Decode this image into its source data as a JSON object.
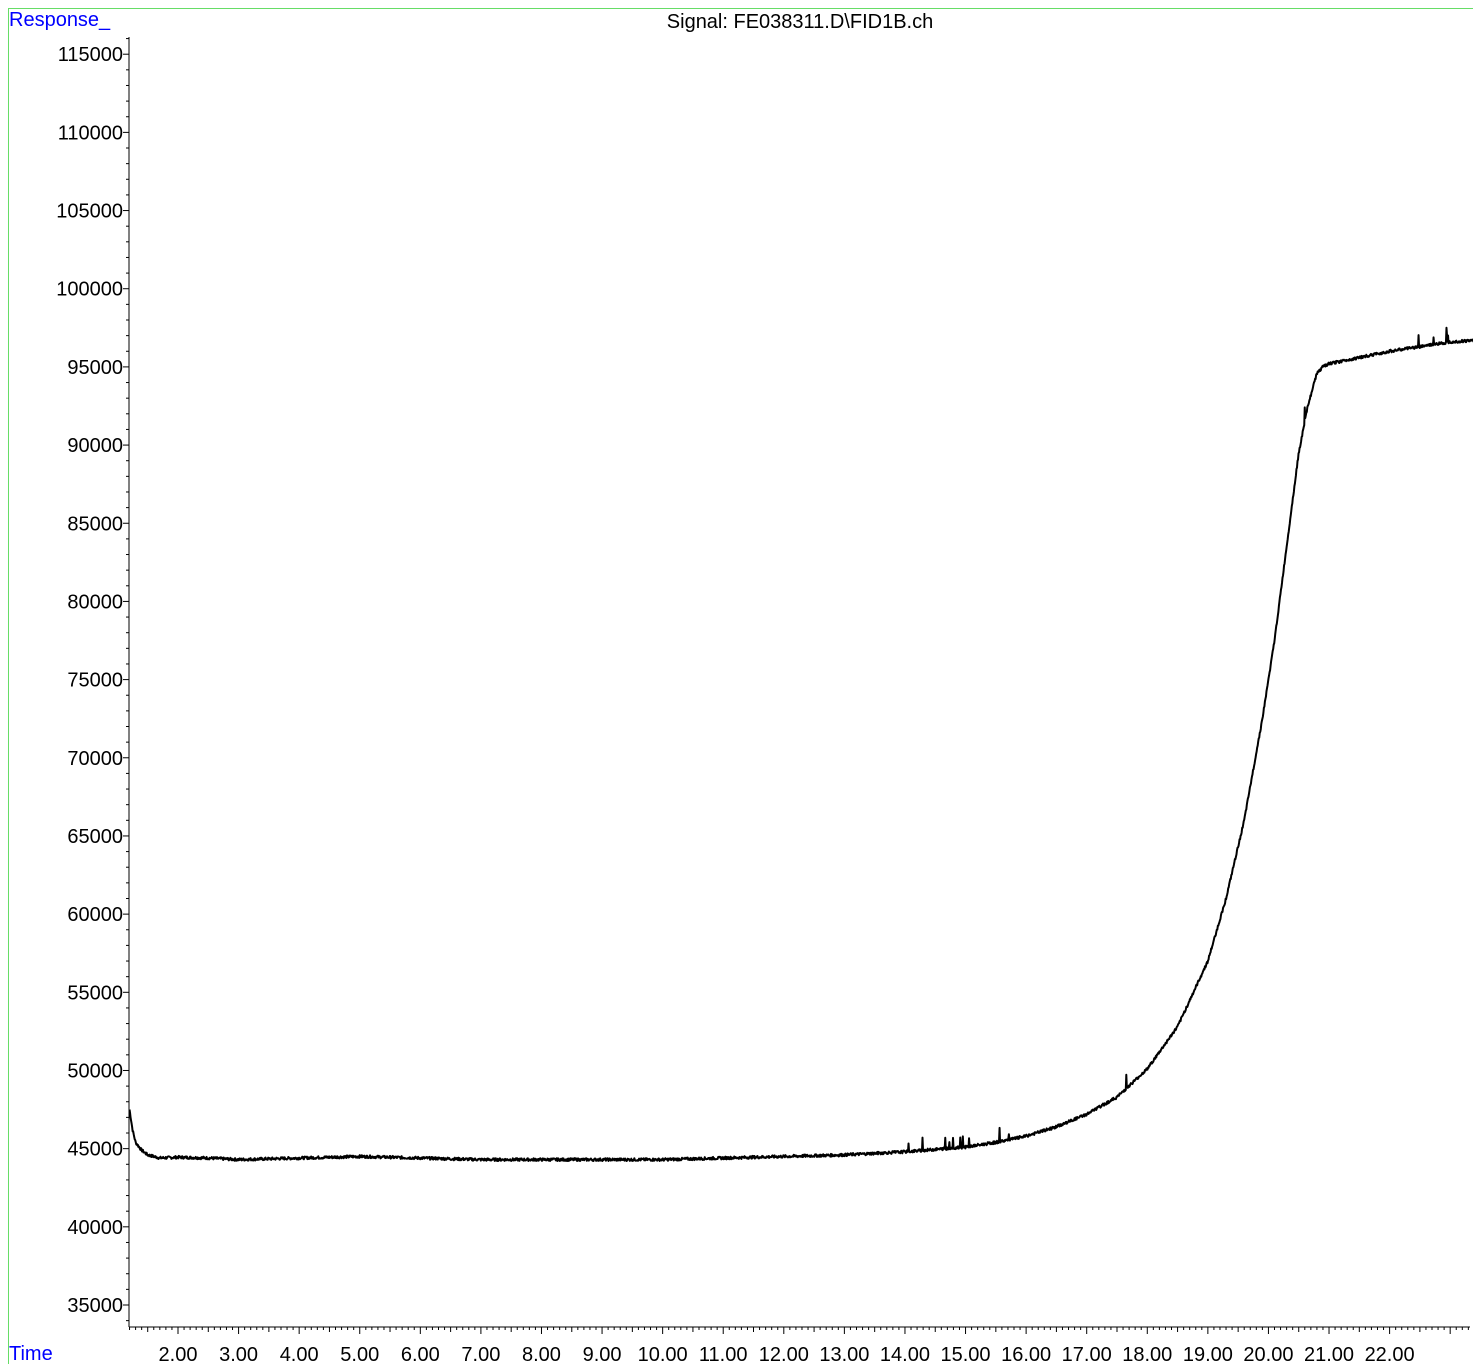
{
  "chart_data": {
    "type": "line",
    "title": "Signal: FE038311.D\\FID1B.ch",
    "ylabel": "Response_",
    "xlabel": "Time",
    "xlim": [
      1.2,
      23.4
    ],
    "ylim": [
      33500,
      117000
    ],
    "xticks": [
      "2.00",
      "3.00",
      "4.00",
      "5.00",
      "6.00",
      "7.00",
      "8.00",
      "9.00",
      "10.00",
      "11.00",
      "12.00",
      "13.00",
      "14.00",
      "15.00",
      "16.00",
      "17.00",
      "18.00",
      "19.00",
      "20.00",
      "21.00",
      "22.00"
    ],
    "yticks": [
      "35000",
      "40000",
      "45000",
      "50000",
      "55000",
      "60000",
      "65000",
      "70000",
      "75000",
      "80000",
      "85000",
      "90000",
      "95000",
      "100000",
      "105000",
      "110000",
      "115000"
    ],
    "grid": false,
    "series": [
      {
        "color": "#000000",
        "x": [
          1.2,
          1.25,
          1.3,
          1.4,
          1.5,
          1.6,
          1.7,
          2.0,
          2.5,
          3.0,
          4.0,
          5.0,
          6.0,
          7.0,
          8.0,
          9.0,
          10.0,
          11.0,
          12.0,
          13.0,
          14.0,
          15.0,
          15.5,
          16.0,
          16.5,
          17.0,
          17.5,
          18.0,
          18.5,
          19.0,
          19.3,
          19.6,
          19.9,
          20.1,
          20.3,
          20.5,
          20.65,
          20.8,
          20.9,
          21.0,
          21.5,
          22.0,
          22.5,
          23.0,
          23.4
        ],
        "y": [
          47500,
          46200,
          45400,
          44900,
          44600,
          44500,
          44400,
          44450,
          44400,
          44300,
          44400,
          44500,
          44400,
          44300,
          44300,
          44300,
          44300,
          44400,
          44500,
          44600,
          44800,
          45100,
          45400,
          45800,
          46400,
          47200,
          48300,
          50100,
          52800,
          57000,
          61000,
          66000,
          72500,
          77500,
          83500,
          89500,
          92500,
          94600,
          95000,
          95200,
          95600,
          96000,
          96300,
          96600,
          96700
        ]
      }
    ]
  }
}
